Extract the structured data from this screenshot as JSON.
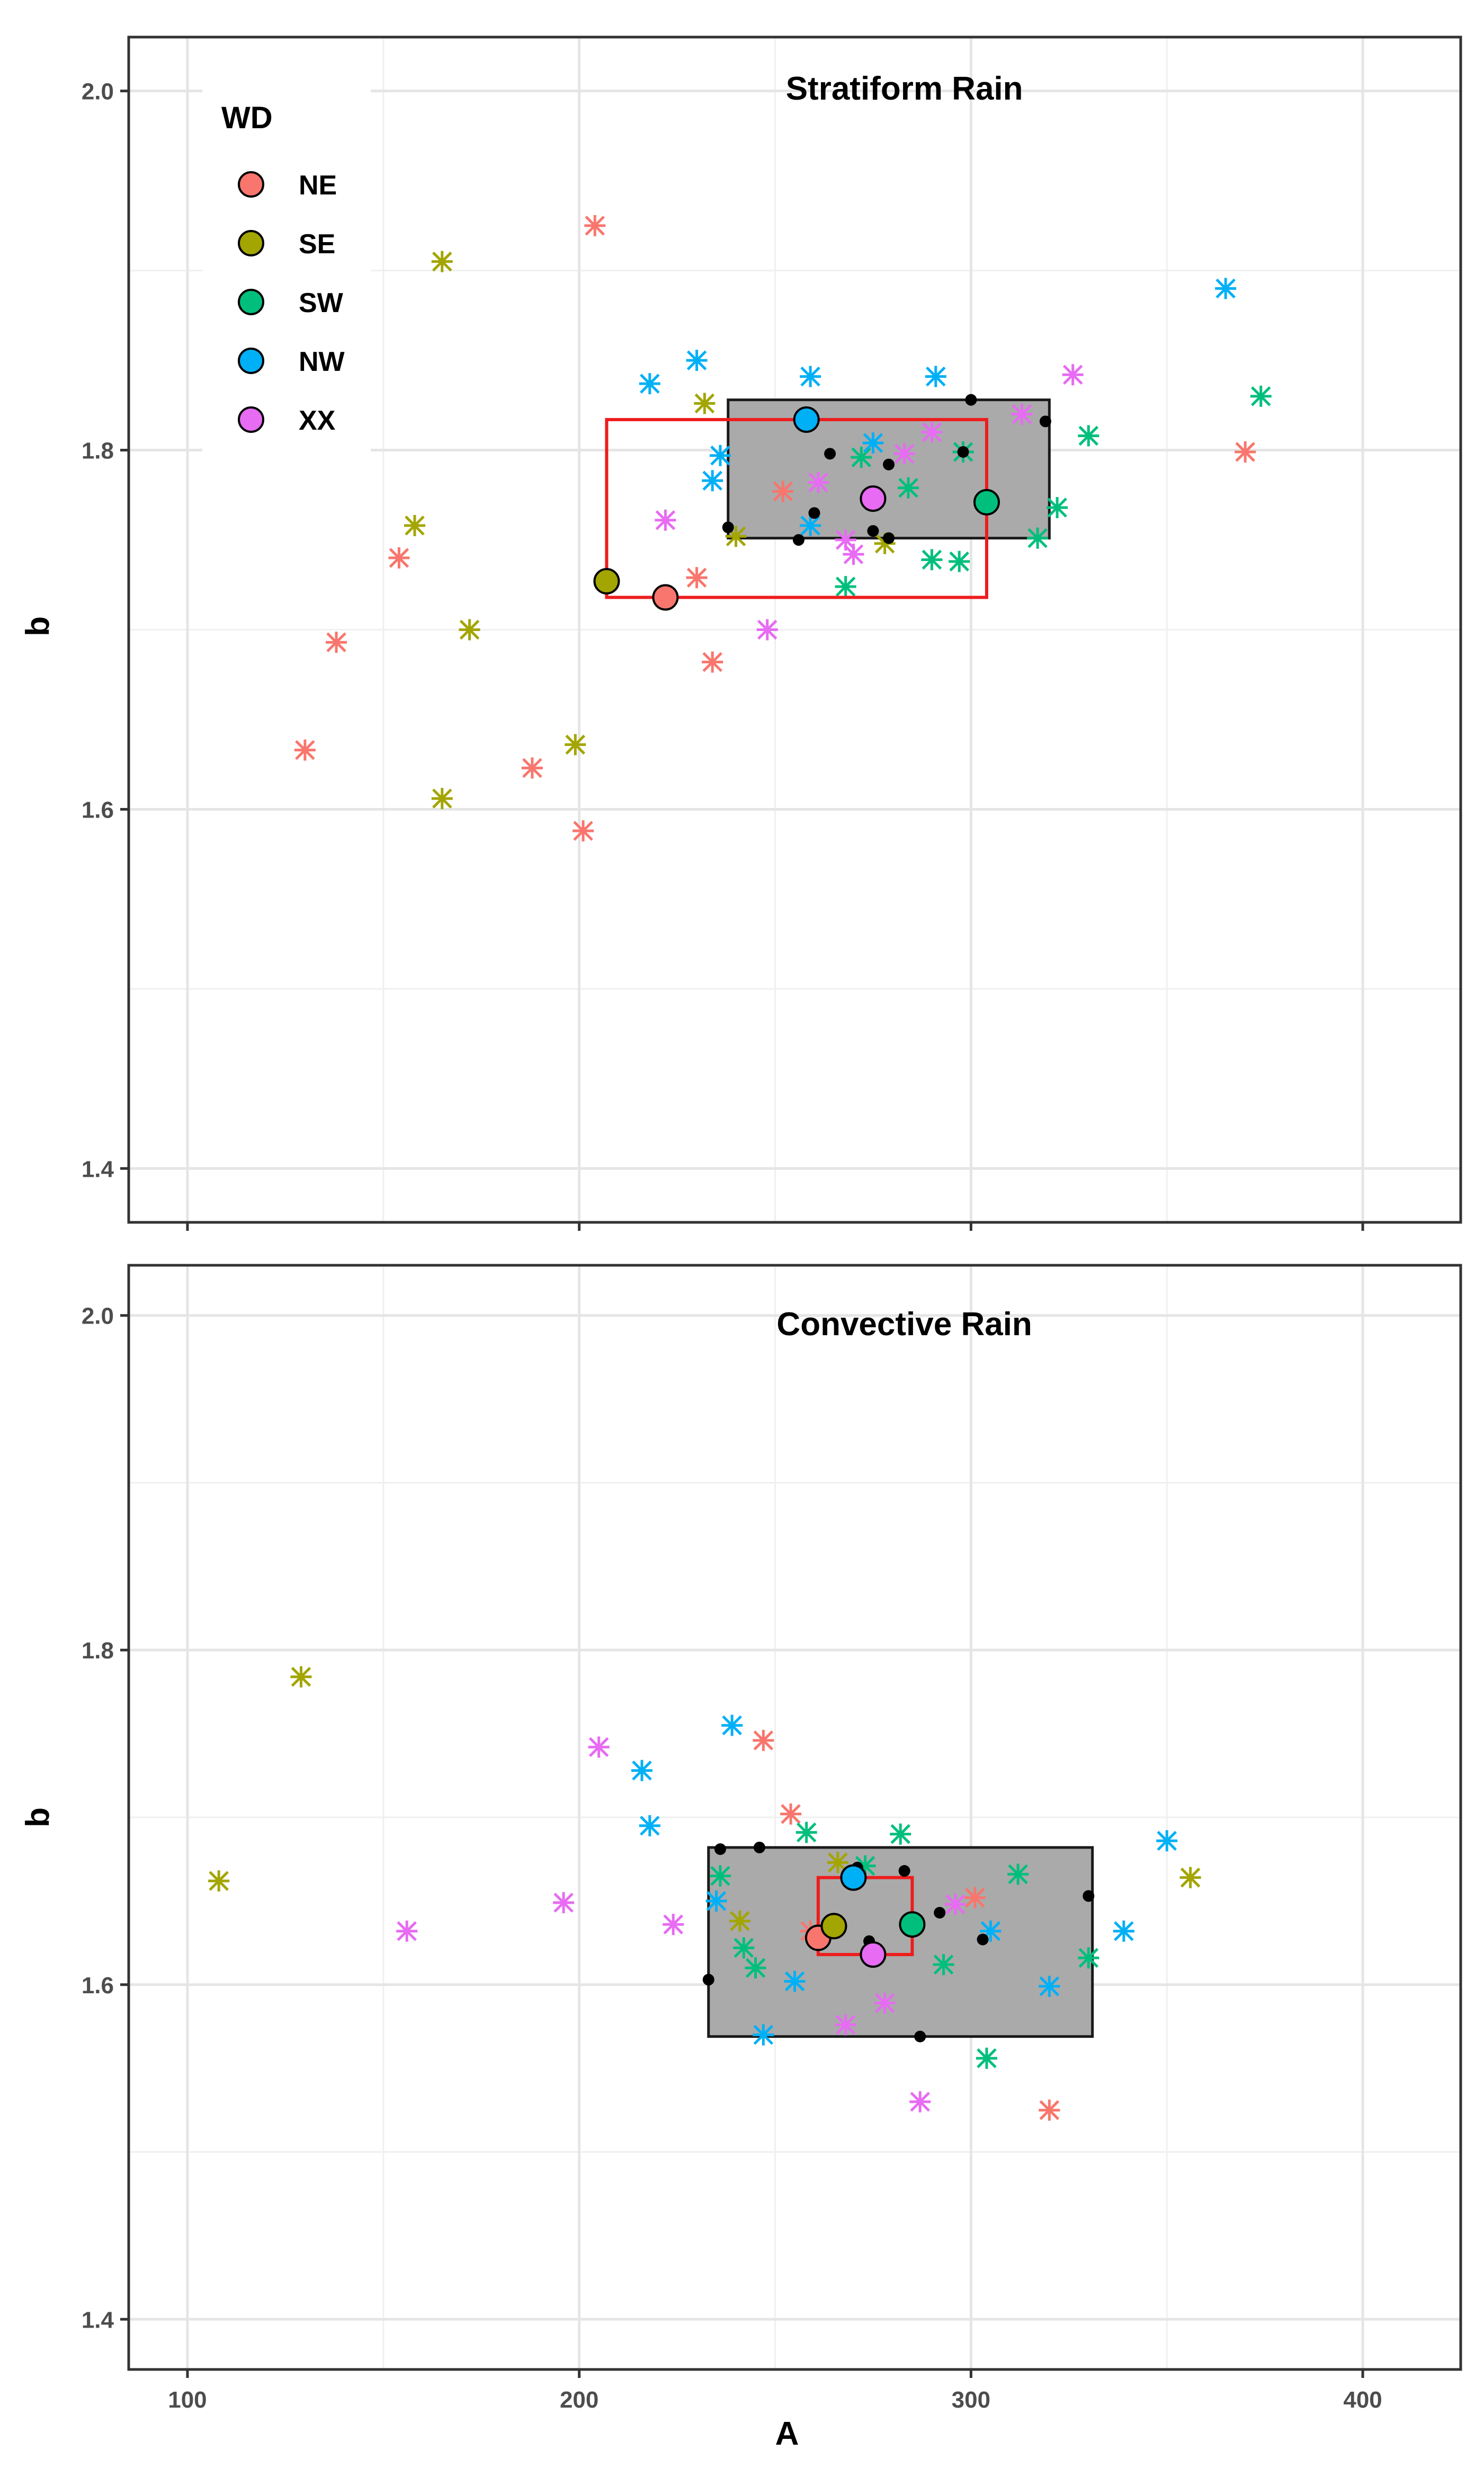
{
  "figure": {
    "xlabel": "A",
    "ylabel": "b"
  },
  "legend": {
    "title": "WD",
    "entries": [
      {
        "name": "NE",
        "color": "#F8766D"
      },
      {
        "name": "SE",
        "color": "#A3A500"
      },
      {
        "name": "SW",
        "color": "#00BF7D"
      },
      {
        "name": "NW",
        "color": "#00B0F6"
      },
      {
        "name": "XX",
        "color": "#E76BF3"
      }
    ]
  },
  "chart_data": [
    {
      "type": "scatter",
      "title": "Stratiform Rain",
      "xlabel": "A",
      "ylabel": "b",
      "xlim": [
        85,
        425
      ],
      "ylim": [
        1.37,
        2.03
      ],
      "x_ticks": [
        100,
        200,
        300,
        400
      ],
      "x_tick_labels": [
        "100",
        "200",
        "300",
        "400"
      ],
      "y_ticks": [
        1.4,
        1.6,
        1.8,
        2.0
      ],
      "y_tick_labels": [
        "1.4",
        "1.6",
        "1.8",
        "2.0"
      ],
      "grid": true,
      "legend_position": "top-left",
      "gray_box": {
        "x": [
          238,
          320
        ],
        "y": [
          1.751,
          1.828
        ]
      },
      "red_box": {
        "x": [
          207,
          304
        ],
        "y": [
          1.718,
          1.817
        ]
      },
      "series": [
        {
          "name": "NE",
          "color": "#F8766D",
          "points": [
            [
              204,
              1.925
            ],
            [
              138,
              1.693
            ],
            [
              130,
              1.633
            ],
            [
              154,
              1.74
            ],
            [
              188,
              1.623
            ],
            [
              201,
              1.588
            ],
            [
              230,
              1.729
            ],
            [
              234,
              1.682
            ],
            [
              252,
              1.777
            ],
            [
              370,
              1.799
            ]
          ],
          "mean": [
            222,
            1.718
          ]
        },
        {
          "name": "SE",
          "color": "#A3A500",
          "points": [
            [
              165,
              1.905
            ],
            [
              158,
              1.758
            ],
            [
              172,
              1.7
            ],
            [
              165,
              1.606
            ],
            [
              199,
              1.636
            ],
            [
              232,
              1.826
            ],
            [
              240,
              1.752
            ],
            [
              278,
              1.748
            ]
          ],
          "mean": [
            207,
            1.727
          ]
        },
        {
          "name": "SW",
          "color": "#00BF7D",
          "points": [
            [
              374,
              1.83
            ],
            [
              330,
              1.808
            ],
            [
              322,
              1.768
            ],
            [
              317,
              1.751
            ],
            [
              284,
              1.779
            ],
            [
              298,
              1.799
            ],
            [
              272,
              1.796
            ],
            [
              290,
              1.739
            ],
            [
              297,
              1.738
            ],
            [
              268,
              1.724
            ]
          ],
          "mean": [
            304,
            1.771
          ]
        },
        {
          "name": "NW",
          "color": "#00B0F6",
          "points": [
            [
              365,
              1.89
            ],
            [
              291,
              1.841
            ],
            [
              259,
              1.841
            ],
            [
              230,
              1.85
            ],
            [
              218,
              1.837
            ],
            [
              236,
              1.797
            ],
            [
              234,
              1.783
            ],
            [
              259,
              1.758
            ],
            [
              275,
              1.804
            ]
          ],
          "mean": [
            258,
            1.817
          ]
        },
        {
          "name": "XX",
          "color": "#E76BF3",
          "points": [
            [
              326,
              1.842
            ],
            [
              313,
              1.82
            ],
            [
              290,
              1.81
            ],
            [
              283,
              1.798
            ],
            [
              261,
              1.782
            ],
            [
              222,
              1.761
            ],
            [
              248,
              1.7
            ],
            [
              268,
              1.75
            ],
            [
              270,
              1.742
            ]
          ],
          "mean": [
            275,
            1.773
          ]
        },
        {
          "name": "summary",
          "color": "#000000",
          "points": [
            [
              238,
              1.757
            ],
            [
              256,
              1.75
            ],
            [
              260,
              1.765
            ],
            [
              264,
              1.798
            ],
            [
              275,
              1.755
            ],
            [
              279,
              1.751
            ],
            [
              279,
              1.792
            ],
            [
              298,
              1.799
            ],
            [
              300,
              1.828
            ],
            [
              319,
              1.816
            ]
          ]
        }
      ]
    },
    {
      "type": "scatter",
      "title": "Convective Rain",
      "xlabel": "A",
      "ylabel": "b",
      "xlim": [
        85,
        425
      ],
      "ylim": [
        1.37,
        2.03
      ],
      "x_ticks": [
        100,
        200,
        300,
        400
      ],
      "x_tick_labels": [
        "100",
        "200",
        "300",
        "400"
      ],
      "y_ticks": [
        1.4,
        1.6,
        1.8,
        2.0
      ],
      "y_tick_labels": [
        "1.4",
        "1.6",
        "1.8",
        "2.0"
      ],
      "grid": true,
      "gray_box": {
        "x": [
          233,
          331
        ],
        "y": [
          1.569,
          1.682
        ]
      },
      "red_box": {
        "x": [
          261,
          285
        ],
        "y": [
          1.618,
          1.664
        ]
      },
      "series": [
        {
          "name": "NE",
          "color": "#F8766D",
          "points": [
            [
              247,
              1.746
            ],
            [
              254,
              1.702
            ],
            [
              301,
              1.652
            ],
            [
              320,
              1.525
            ],
            [
              259,
              1.632
            ]
          ],
          "mean": [
            261,
            1.628
          ]
        },
        {
          "name": "SE",
          "color": "#A3A500",
          "points": [
            [
              129,
              1.784
            ],
            [
              108,
              1.662
            ],
            [
              356,
              1.664
            ],
            [
              241,
              1.638
            ],
            [
              266,
              1.673
            ]
          ],
          "mean": [
            265,
            1.635
          ]
        },
        {
          "name": "SW",
          "color": "#00BF7D",
          "points": [
            [
              258,
              1.691
            ],
            [
              273,
              1.671
            ],
            [
              282,
              1.69
            ],
            [
              312,
              1.666
            ],
            [
              330,
              1.616
            ],
            [
              236,
              1.665
            ],
            [
              242,
              1.622
            ],
            [
              245,
              1.61
            ],
            [
              293,
              1.612
            ],
            [
              304,
              1.556
            ]
          ],
          "mean": [
            285,
            1.636
          ]
        },
        {
          "name": "NW",
          "color": "#00B0F6",
          "points": [
            [
              239,
              1.755
            ],
            [
              216,
              1.728
            ],
            [
              218,
              1.695
            ],
            [
              350,
              1.686
            ],
            [
              339,
              1.632
            ],
            [
              305,
              1.632
            ],
            [
              320,
              1.599
            ],
            [
              255,
              1.602
            ],
            [
              247,
              1.57
            ],
            [
              235,
              1.65
            ]
          ],
          "mean": [
            270,
            1.664
          ]
        },
        {
          "name": "XX",
          "color": "#E76BF3",
          "points": [
            [
              205,
              1.742
            ],
            [
              196,
              1.649
            ],
            [
              224,
              1.636
            ],
            [
              156,
              1.632
            ],
            [
              296,
              1.648
            ],
            [
              278,
              1.589
            ],
            [
              268,
              1.576
            ],
            [
              287,
              1.53
            ]
          ],
          "mean": [
            275,
            1.618
          ]
        },
        {
          "name": "summary",
          "color": "#000000",
          "points": [
            [
              236,
              1.681
            ],
            [
              246,
              1.682
            ],
            [
              233,
              1.603
            ],
            [
              271,
              1.67
            ],
            [
              283,
              1.668
            ],
            [
              274,
              1.626
            ],
            [
              292,
              1.643
            ],
            [
              303,
              1.627
            ],
            [
              330,
              1.653
            ],
            [
              287,
              1.569
            ]
          ]
        }
      ]
    }
  ]
}
